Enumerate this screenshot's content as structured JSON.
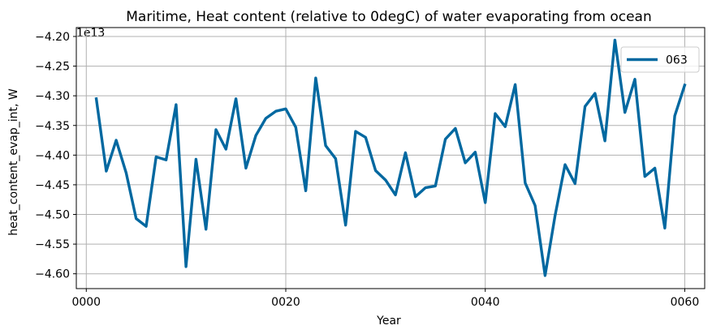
{
  "chart_data": {
    "type": "line",
    "title": "Maritime, Heat content (relative to 0degC) of water evaporating from ocean",
    "xlabel": "Year",
    "ylabel": "heat_content_evap_int, W",
    "offset_text": "1e13",
    "xlim": [
      -1,
      62
    ],
    "ylim": [
      -4.625,
      -4.185
    ],
    "x_ticks": [
      0,
      20,
      40,
      60
    ],
    "x_tick_labels": [
      "0000",
      "0020",
      "0040",
      "0060"
    ],
    "y_ticks": [
      -4.6,
      -4.55,
      -4.5,
      -4.45,
      -4.4,
      -4.35,
      -4.3,
      -4.25,
      -4.2
    ],
    "y_tick_labels": [
      "−4.60",
      "−4.55",
      "−4.50",
      "−4.45",
      "−4.40",
      "−4.35",
      "−4.30",
      "−4.25",
      "−4.20"
    ],
    "grid": true,
    "legend_position": "top-right",
    "series": [
      {
        "name": "063",
        "color": "#0068a0",
        "x": [
          1,
          2,
          3,
          4,
          5,
          6,
          7,
          8,
          9,
          10,
          11,
          12,
          13,
          14,
          15,
          16,
          17,
          18,
          19,
          20,
          21,
          22,
          23,
          24,
          25,
          26,
          27,
          28,
          29,
          30,
          31,
          32,
          33,
          34,
          35,
          36,
          37,
          38,
          39,
          40,
          41,
          42,
          43,
          44,
          45,
          46,
          47,
          48,
          49,
          50,
          51,
          52,
          53,
          54,
          55,
          56,
          57,
          58,
          59,
          60
        ],
        "values": [
          -4.305,
          -4.427,
          -4.375,
          -4.43,
          -4.507,
          -4.52,
          -4.403,
          -4.408,
          -4.315,
          -4.588,
          -4.407,
          -4.525,
          -4.357,
          -4.39,
          -4.305,
          -4.422,
          -4.367,
          -4.338,
          -4.326,
          -4.322,
          -4.353,
          -4.46,
          -4.27,
          -4.384,
          -4.406,
          -4.518,
          -4.36,
          -4.37,
          -4.426,
          -4.442,
          -4.467,
          -4.396,
          -4.47,
          -4.455,
          -4.452,
          -4.373,
          -4.355,
          -4.413,
          -4.395,
          -4.48,
          -4.33,
          -4.352,
          -4.281,
          -4.447,
          -4.485,
          -4.603,
          -4.502,
          -4.416,
          -4.448,
          -4.318,
          -4.296,
          -4.376,
          -4.206,
          -4.328,
          -4.272,
          -4.436,
          -4.422,
          -4.523,
          -4.334,
          -4.282
        ]
      }
    ]
  }
}
